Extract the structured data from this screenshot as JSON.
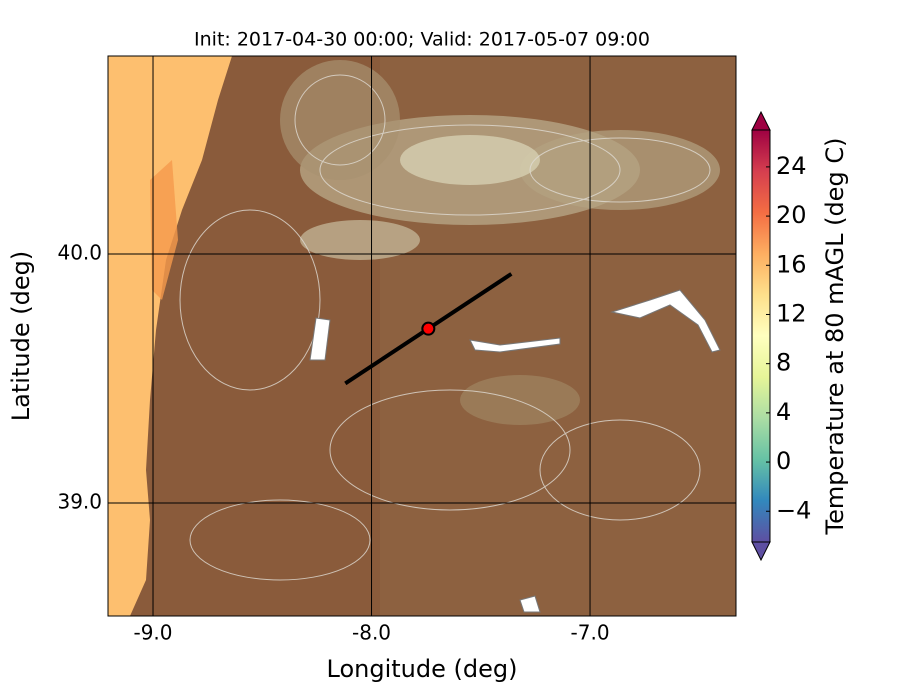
{
  "chart_data": {
    "type": "map",
    "title": "Init: 2017-04-30 00:00; Valid: 2017-05-07 09:00",
    "x_label": "Longitude (deg)",
    "y_label": "Latitude (deg)",
    "xlim": [
      -9.206,
      -6.332
    ],
    "ylim": [
      38.546,
      40.795
    ],
    "xticks": [
      {
        "value": -9,
        "label": "-9.0"
      },
      {
        "value": -8,
        "label": "-8.0"
      },
      {
        "value": -7,
        "label": "-7.0"
      }
    ],
    "yticks": [
      {
        "value": 39,
        "label": "39.0"
      },
      {
        "value": 40,
        "label": "40.0"
      }
    ],
    "grid": true,
    "cross_section": {
      "lon": [
        -8.12,
        -7.36
      ],
      "lat": [
        39.48,
        39.92
      ],
      "color": "#000000"
    },
    "point": {
      "lon": -7.74,
      "lat": 39.7,
      "color": "#ff0000"
    },
    "colorbar": {
      "label": "Temperature at 80 mAGL (deg C)",
      "lim": [
        -6.5,
        27
      ],
      "ticks": [
        {
          "value": -4,
          "label": "−4"
        },
        0,
        4,
        8,
        12,
        16,
        20,
        24
      ],
      "colors": [
        "#5e4fa2",
        "#3288bd",
        "#66c2a5",
        "#abdda4",
        "#e6f598",
        "#ffffbf",
        "#fee08b",
        "#fdae61",
        "#f46d43",
        "#d53e4f",
        "#9e0142"
      ]
    }
  }
}
